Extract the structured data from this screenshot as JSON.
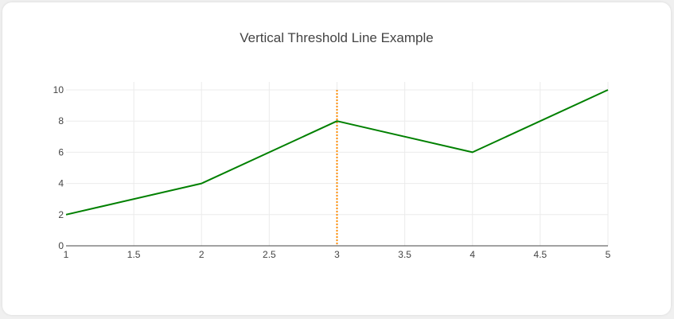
{
  "chart_data": {
    "type": "line",
    "title": "Vertical Threshold Line Example",
    "xlabel": "",
    "ylabel": "",
    "x": [
      1,
      2,
      3,
      4,
      5
    ],
    "series": [
      {
        "values": [
          2,
          4,
          8,
          6,
          10
        ],
        "color": "#008000"
      }
    ],
    "xlim": [
      1,
      5
    ],
    "ylim": [
      0,
      10
    ],
    "xticks": [
      1,
      1.5,
      2,
      2.5,
      3,
      3.5,
      4,
      4.5,
      5
    ],
    "yticks": [
      0,
      2,
      4,
      6,
      8,
      10
    ],
    "grid": true,
    "threshold": {
      "orientation": "vertical",
      "x": 3,
      "y_range": [
        0,
        10
      ],
      "color": "#ff8c00",
      "style": "dotted"
    }
  }
}
